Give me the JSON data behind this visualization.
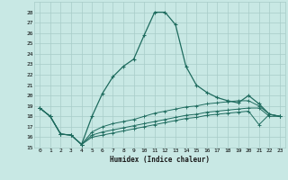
{
  "xlabel": "Humidex (Indice chaleur)",
  "xlim": [
    -0.5,
    23.5
  ],
  "ylim": [
    15,
    29
  ],
  "yticks": [
    15,
    16,
    17,
    18,
    19,
    20,
    21,
    22,
    23,
    24,
    25,
    26,
    27,
    28
  ],
  "xticks": [
    0,
    1,
    2,
    3,
    4,
    5,
    6,
    7,
    8,
    9,
    10,
    11,
    12,
    13,
    14,
    15,
    16,
    17,
    18,
    19,
    20,
    21,
    22,
    23
  ],
  "xtick_labels": [
    "0",
    "1",
    "2",
    "3",
    "4",
    "5",
    "6",
    "7",
    "8",
    "9",
    "10",
    "11",
    "12",
    "13",
    "14",
    "15",
    "16",
    "17",
    "18",
    "19",
    "20",
    "21",
    "22",
    "23"
  ],
  "bg_color": "#c8e8e4",
  "grid_color": "#a8ccc8",
  "line_color": "#1e6b5e",
  "series_main": [
    18.8,
    18.0,
    16.3,
    16.2,
    15.3,
    18.0,
    20.2,
    21.8,
    22.8,
    23.5,
    25.8,
    28.0,
    28.0,
    26.8,
    22.8,
    21.0,
    20.3,
    19.8,
    19.5,
    19.3,
    20.0,
    19.2,
    18.2,
    18.0
  ],
  "series_flat": [
    [
      18.8,
      18.0,
      16.3,
      16.2,
      15.3,
      16.5,
      17.0,
      17.3,
      17.5,
      17.7,
      18.0,
      18.3,
      18.5,
      18.7,
      18.9,
      19.0,
      19.2,
      19.3,
      19.4,
      19.5,
      19.5,
      19.0,
      18.2,
      18.0
    ],
    [
      18.8,
      18.0,
      16.3,
      16.2,
      15.3,
      16.2,
      16.5,
      16.7,
      16.9,
      17.1,
      17.3,
      17.5,
      17.7,
      17.9,
      18.1,
      18.2,
      18.4,
      18.5,
      18.6,
      18.7,
      18.8,
      18.8,
      18.0,
      18.0
    ],
    [
      18.8,
      18.0,
      16.3,
      16.2,
      15.3,
      16.0,
      16.2,
      16.4,
      16.6,
      16.8,
      17.0,
      17.2,
      17.4,
      17.6,
      17.8,
      17.9,
      18.1,
      18.2,
      18.3,
      18.4,
      18.5,
      17.2,
      18.2,
      18.0
    ]
  ]
}
